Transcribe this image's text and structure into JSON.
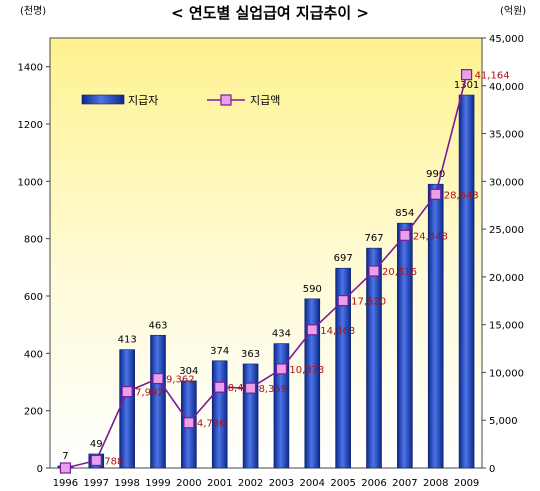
{
  "chart_data": {
    "type": "bar",
    "title": "< 연도별 실업급여 지급추이 >",
    "y_left_unit": "(천명)",
    "y_right_unit": "(억원)",
    "categories": [
      "1996",
      "1997",
      "1998",
      "1999",
      "2000",
      "2001",
      "2002",
      "2003",
      "2004",
      "2005",
      "2006",
      "2007",
      "2008",
      "2009"
    ],
    "y_left_ticks": [
      "0",
      "200",
      "400",
      "600",
      "800",
      "1000",
      "1200",
      "1400"
    ],
    "y_right_ticks": [
      "0",
      "5,000",
      "10,000",
      "15,000",
      "20,000",
      "25,000",
      "30,000",
      "35,000",
      "40,000",
      "45,000"
    ],
    "ylim_left": [
      0,
      1500
    ],
    "ylim_right": [
      0,
      45000
    ],
    "series": [
      {
        "name": "지급자",
        "type": "bar",
        "axis": "left",
        "values": [
          7,
          49,
          413,
          463,
          304,
          374,
          363,
          434,
          590,
          697,
          767,
          854,
          990,
          1301
        ],
        "labels": [
          "7",
          "49",
          "413",
          "463",
          "304",
          "374",
          "363",
          "434",
          "590",
          "697",
          "767",
          "854",
          "990",
          "1301"
        ]
      },
      {
        "name": "지급액",
        "type": "line",
        "axis": "right",
        "values": [
          0,
          788,
          7992,
          9362,
          4736,
          8459,
          8359,
          10373,
          14463,
          17520,
          20616,
          24348,
          28643,
          41164
        ],
        "labels": [
          "",
          "788",
          "7,992",
          "9,362",
          "4,736",
          "8,459",
          "8,359",
          "10,373",
          "14,463",
          "17,520",
          "20,616",
          "24,348",
          "28,643",
          "41,164"
        ]
      }
    ],
    "grid": false,
    "legend": "top-left",
    "colors": {
      "bar": "#2b4fc9",
      "line": "#7a1a9a",
      "marker": "#e8a0e8",
      "plot_top": "#fff5a0",
      "plot_bottom": "#ffffff",
      "line_label": "#b01010"
    }
  }
}
